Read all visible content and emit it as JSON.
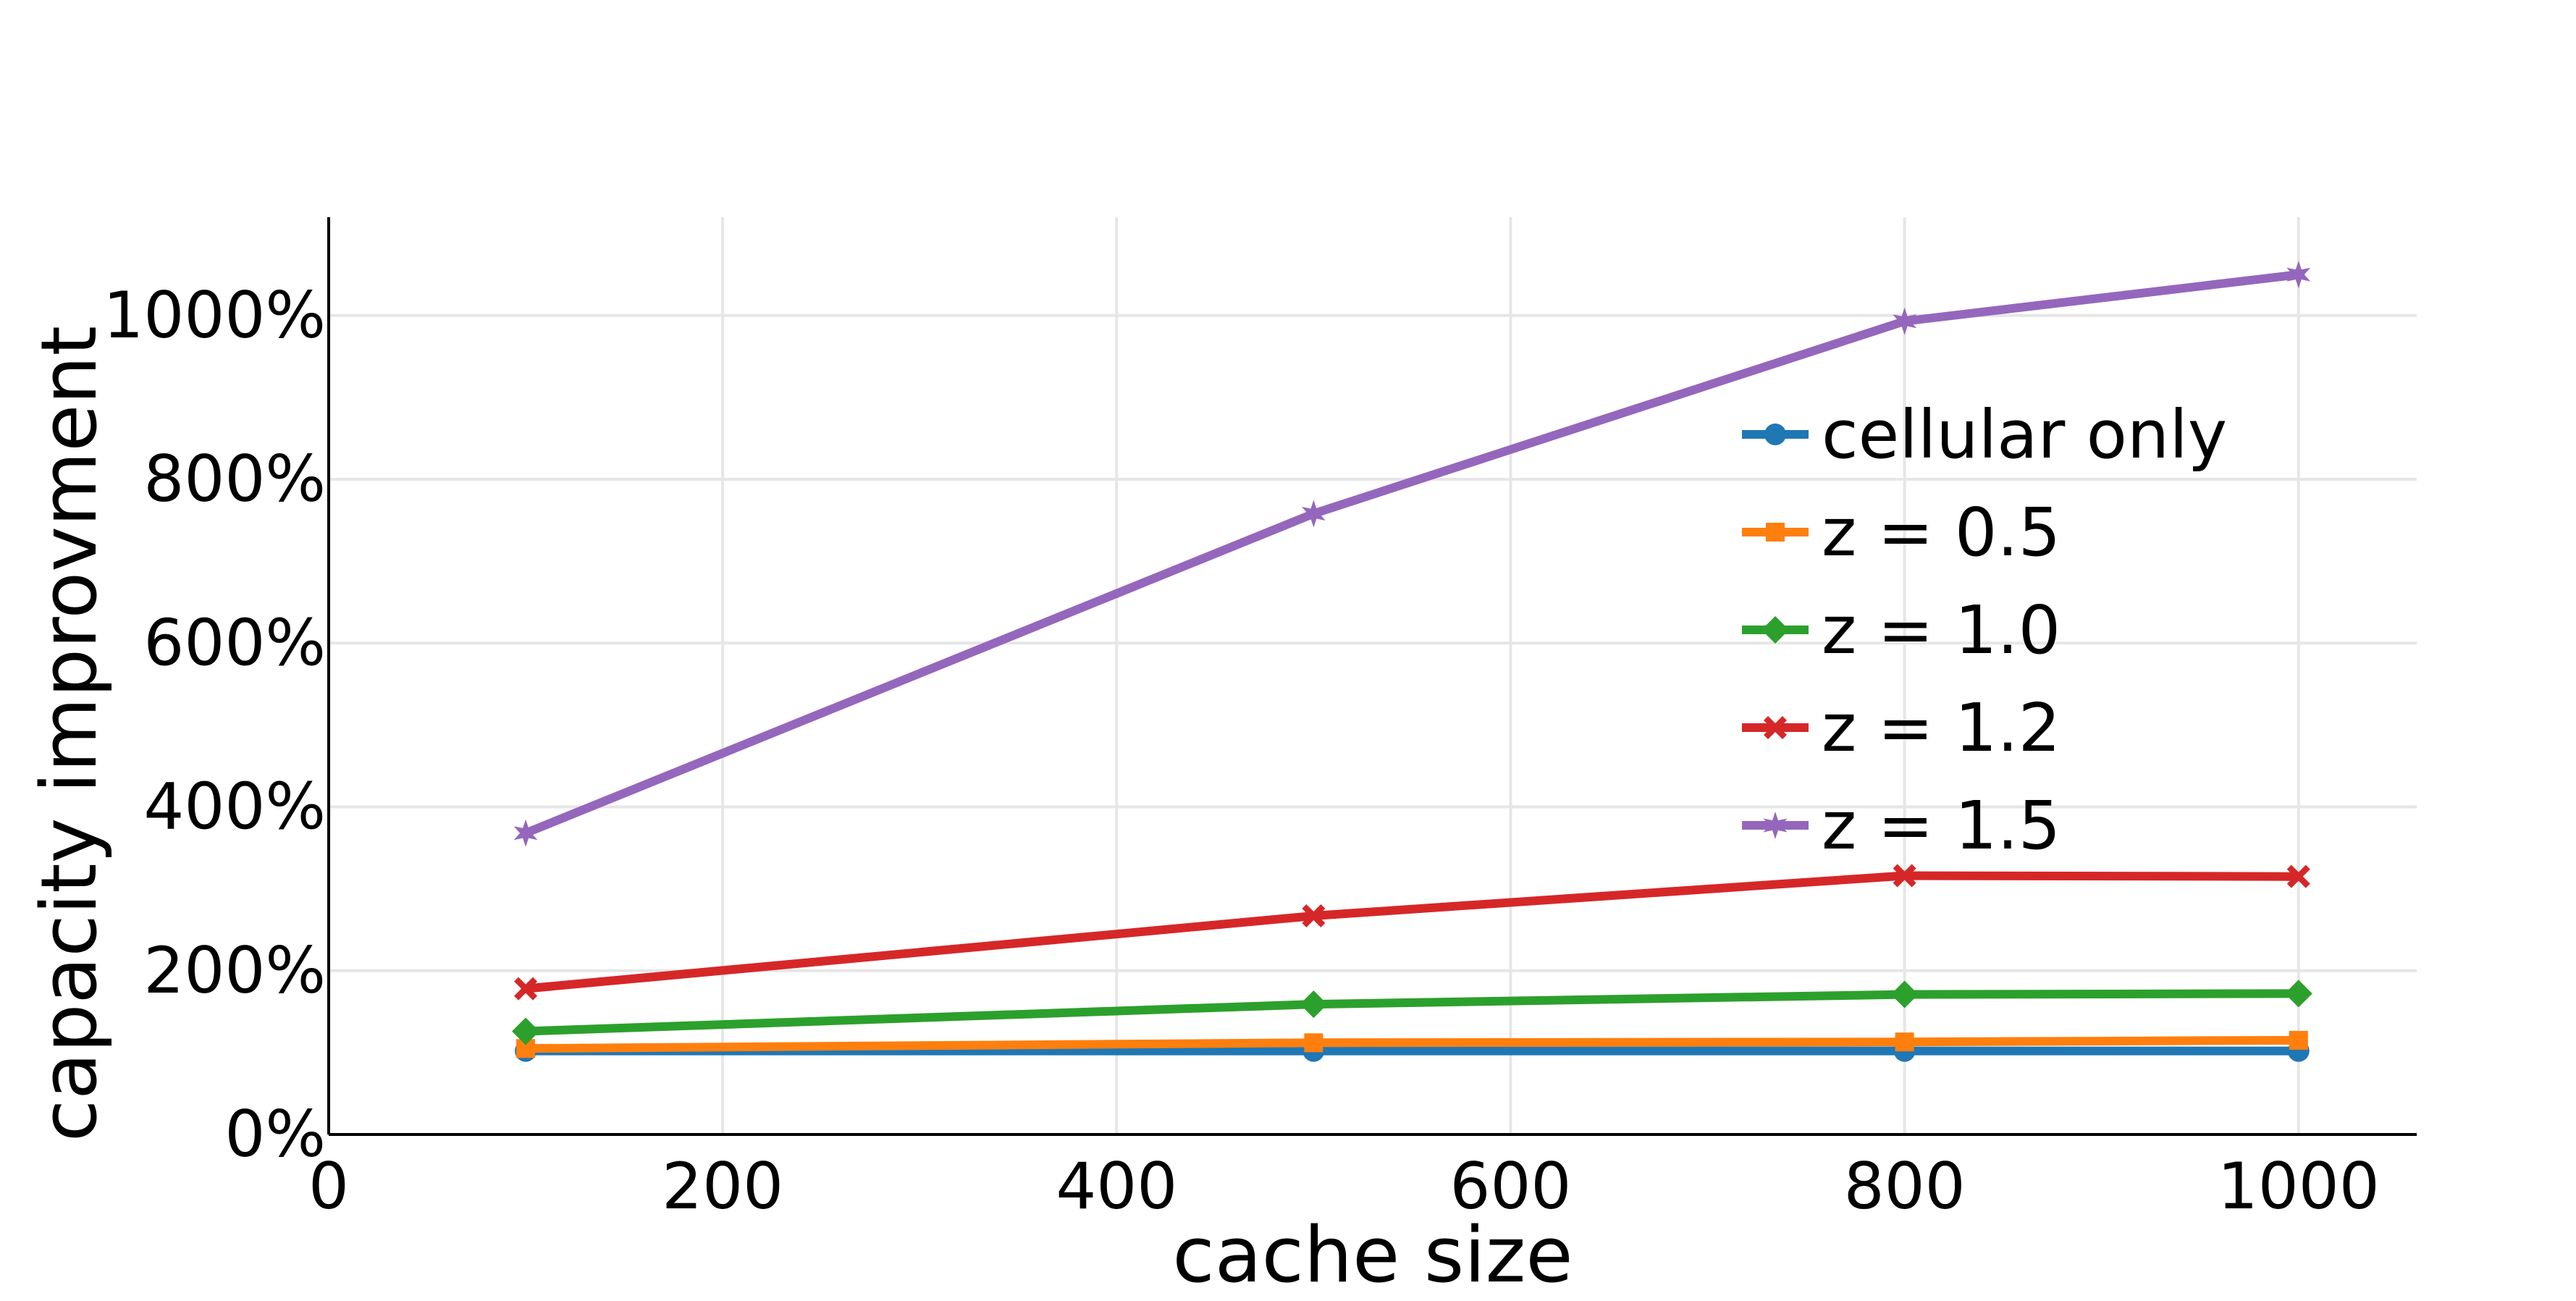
{
  "chart_data": {
    "type": "line",
    "title": "",
    "xlabel": "cache size",
    "ylabel": "capacity improvment",
    "xlim": [
      0,
      1060
    ],
    "ylim": [
      0,
      1120
    ],
    "x_ticks": [
      0,
      200,
      400,
      600,
      800,
      1000
    ],
    "x_tick_labels": [
      "0",
      "200",
      "400",
      "600",
      "800",
      "1000"
    ],
    "y_ticks": [
      0,
      200,
      400,
      600,
      800,
      1000
    ],
    "y_tick_labels": [
      "0%",
      "200%",
      "400%",
      "600%",
      "800%",
      "1000%"
    ],
    "grid": true,
    "legend_position": "right",
    "x": [
      100,
      500,
      800,
      1000
    ],
    "series": [
      {
        "name": "cellular only",
        "color": "#1f77b4",
        "marker": "circle",
        "values": [
          102,
          102,
          102,
          102
        ]
      },
      {
        "name": "z = 0.5",
        "color": "#ff7f0e",
        "marker": "square",
        "values": [
          105,
          112,
          113,
          115
        ]
      },
      {
        "name": "z = 1.0",
        "color": "#2ca02c",
        "marker": "diamond",
        "values": [
          126,
          159,
          171,
          172
        ]
      },
      {
        "name": "z = 1.2",
        "color": "#d62728",
        "marker": "x",
        "values": [
          178,
          267,
          316,
          315
        ]
      },
      {
        "name": "z = 1.5",
        "color": "#9467bd",
        "marker": "star",
        "values": [
          368,
          758,
          993,
          1050
        ]
      }
    ]
  }
}
